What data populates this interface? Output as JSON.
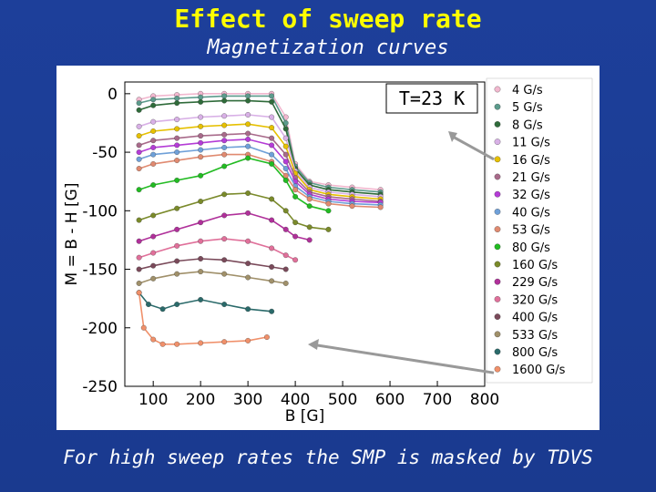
{
  "slide": {
    "title": "Effect of sweep rate",
    "subtitle": "Magnetization curves",
    "caption": "For high sweep rates the SMP is masked by TDVS"
  },
  "chart_data": {
    "type": "line",
    "title": "",
    "xlabel": "B [G]",
    "ylabel": "M = B - H [G]",
    "xlim": [
      40,
      800
    ],
    "ylim": [
      -250,
      10
    ],
    "xticks": [
      100,
      200,
      300,
      400,
      500,
      600,
      700,
      800
    ],
    "yticks": [
      0,
      -50,
      -100,
      -150,
      -200,
      -250
    ],
    "annotation": "T=23 K",
    "legend_position": "right",
    "series": [
      {
        "name": "4 G/s",
        "color": "#f2b8cf",
        "x": [
          70,
          100,
          150,
          200,
          250,
          300,
          350,
          380,
          400,
          430,
          470,
          520,
          580
        ],
        "y": [
          -5,
          -2,
          -1,
          0,
          0,
          0,
          0,
          -20,
          -60,
          -75,
          -78,
          -80,
          -82
        ]
      },
      {
        "name": "5 G/s",
        "color": "#5c9b8c",
        "x": [
          70,
          100,
          150,
          200,
          250,
          300,
          350,
          380,
          400,
          430,
          470,
          520,
          580
        ],
        "y": [
          -8,
          -5,
          -4,
          -3,
          -2,
          -2,
          -2,
          -25,
          -62,
          -76,
          -80,
          -82,
          -84
        ]
      },
      {
        "name": "8 G/s",
        "color": "#2f6b3a",
        "x": [
          70,
          100,
          150,
          200,
          250,
          300,
          350,
          380,
          400,
          430,
          470,
          520,
          580
        ],
        "y": [
          -14,
          -10,
          -8,
          -7,
          -6,
          -6,
          -7,
          -30,
          -64,
          -78,
          -82,
          -84,
          -86
        ]
      },
      {
        "name": "11 G/s",
        "color": "#d8b0e6",
        "x": [
          70,
          100,
          150,
          200,
          250,
          300,
          350,
          380,
          400,
          430,
          470,
          520,
          580
        ],
        "y": [
          -28,
          -24,
          -22,
          -20,
          -19,
          -18,
          -20,
          -38,
          -66,
          -80,
          -84,
          -86,
          -88
        ]
      },
      {
        "name": "16 G/s",
        "color": "#e6c000",
        "x": [
          70,
          100,
          150,
          200,
          250,
          300,
          350,
          380,
          400,
          430,
          470,
          520,
          580
        ],
        "y": [
          -36,
          -32,
          -30,
          -28,
          -27,
          -26,
          -29,
          -45,
          -68,
          -82,
          -86,
          -88,
          -90
        ]
      },
      {
        "name": "21 G/s",
        "color": "#a86a8a",
        "x": [
          70,
          100,
          150,
          200,
          250,
          300,
          350,
          380,
          400,
          430,
          470,
          520,
          580
        ],
        "y": [
          -44,
          -40,
          -38,
          -36,
          -35,
          -34,
          -38,
          -52,
          -72,
          -84,
          -88,
          -90,
          -92
        ]
      },
      {
        "name": "32 G/s",
        "color": "#b43cd6",
        "x": [
          70,
          100,
          150,
          200,
          250,
          300,
          350,
          380,
          400,
          430,
          470,
          520,
          580
        ],
        "y": [
          -50,
          -46,
          -44,
          -42,
          -40,
          -39,
          -44,
          -58,
          -75,
          -86,
          -90,
          -92,
          -93
        ]
      },
      {
        "name": "40 G/s",
        "color": "#6fa0d8",
        "x": [
          70,
          100,
          150,
          200,
          250,
          300,
          350,
          380,
          400,
          430,
          470,
          520,
          580
        ],
        "y": [
          -56,
          -52,
          -50,
          -48,
          -46,
          -45,
          -52,
          -64,
          -79,
          -88,
          -92,
          -94,
          -95
        ]
      },
      {
        "name": "53 G/s",
        "color": "#e08a70",
        "x": [
          70,
          100,
          150,
          200,
          250,
          300,
          350,
          380,
          400,
          430,
          470,
          520,
          580
        ],
        "y": [
          -64,
          -60,
          -57,
          -54,
          -52,
          -52,
          -58,
          -70,
          -82,
          -90,
          -94,
          -96,
          -97
        ]
      },
      {
        "name": "80 G/s",
        "color": "#22bb22",
        "x": [
          70,
          100,
          150,
          200,
          250,
          300,
          350,
          380,
          400,
          430,
          470
        ],
        "y": [
          -82,
          -78,
          -74,
          -70,
          -62,
          -55,
          -60,
          -74,
          -88,
          -96,
          -100
        ]
      },
      {
        "name": "160 G/s",
        "color": "#7a8a2a",
        "x": [
          70,
          100,
          150,
          200,
          250,
          300,
          350,
          380,
          400,
          430,
          470
        ],
        "y": [
          -108,
          -104,
          -98,
          -92,
          -86,
          -85,
          -90,
          -100,
          -110,
          -114,
          -116
        ]
      },
      {
        "name": "229 G/s",
        "color": "#b0309a",
        "x": [
          70,
          100,
          150,
          200,
          250,
          300,
          350,
          380,
          400,
          430
        ],
        "y": [
          -126,
          -122,
          -116,
          -110,
          -104,
          -102,
          -108,
          -116,
          -122,
          -125
        ]
      },
      {
        "name": "320 G/s",
        "color": "#e0709a",
        "x": [
          70,
          100,
          150,
          200,
          250,
          300,
          350,
          380,
          400
        ],
        "y": [
          -140,
          -136,
          -130,
          -126,
          -124,
          -126,
          -132,
          -138,
          -142
        ]
      },
      {
        "name": "400 G/s",
        "color": "#7a4a5a",
        "x": [
          70,
          100,
          150,
          200,
          250,
          300,
          350,
          380
        ],
        "y": [
          -150,
          -147,
          -143,
          -141,
          -142,
          -145,
          -148,
          -150
        ]
      },
      {
        "name": "533 G/s",
        "color": "#a0906a",
        "x": [
          70,
          100,
          150,
          200,
          250,
          300,
          350,
          380
        ],
        "y": [
          -162,
          -158,
          -154,
          -152,
          -154,
          -157,
          -160,
          -162
        ]
      },
      {
        "name": "800 G/s",
        "color": "#2a6a6a",
        "x": [
          70,
          90,
          120,
          150,
          200,
          250,
          300,
          350
        ],
        "y": [
          -170,
          -180,
          -184,
          -180,
          -176,
          -180,
          -184,
          -186
        ]
      },
      {
        "name": "1600 G/s",
        "color": "#f0906a",
        "x": [
          70,
          80,
          100,
          120,
          150,
          200,
          250,
          300,
          340
        ],
        "y": [
          -170,
          -200,
          -210,
          -214,
          -214,
          -213,
          -212,
          -211,
          -208
        ]
      }
    ]
  }
}
